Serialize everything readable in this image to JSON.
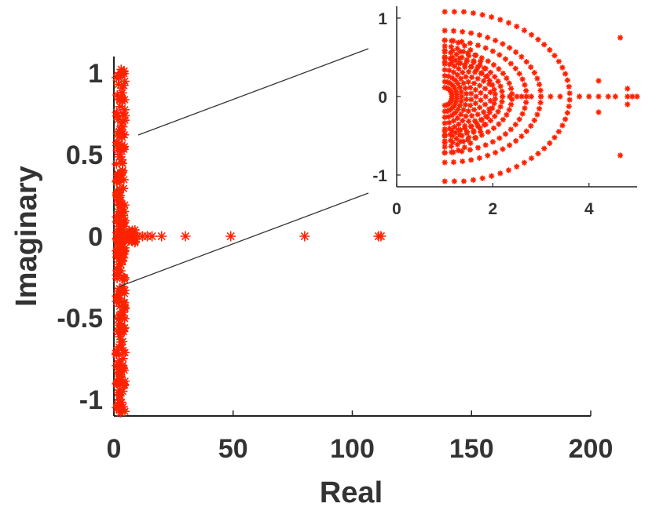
{
  "chart_data": [
    {
      "type": "scatter",
      "title": "",
      "xlabel": "Real",
      "ylabel": "Imaginary",
      "xlim": [
        0,
        200
      ],
      "ylim": [
        -1.1,
        1.1
      ],
      "xticks": [
        "0",
        "50",
        "100",
        "150",
        "200"
      ],
      "yticks": [
        "-1",
        "-0.5",
        "0",
        "0.5",
        "1"
      ],
      "grid": false,
      "marker": "asterisk",
      "color": "#ff2200",
      "series": [
        {
          "cluster": {
            "x_range": [
              1,
              4.7
            ],
            "y_range": [
              -1.08,
              1.08
            ],
            "description_points": "dense column of eigenvalues near Re in [1,5]"
          },
          "outliers": [
            [
              5,
              0
            ],
            [
              6,
              0
            ],
            [
              7,
              0
            ],
            [
              8,
              0
            ],
            [
              9,
              0
            ],
            [
              10,
              0
            ],
            [
              12,
              0
            ],
            [
              14,
              0
            ],
            [
              16,
              0
            ],
            [
              20,
              0
            ],
            [
              30,
              0
            ],
            [
              49,
              0
            ],
            [
              80,
              0
            ],
            [
              111,
              0
            ],
            [
              112,
              0
            ]
          ]
        }
      ]
    },
    {
      "type": "scatter",
      "inset": true,
      "title": "",
      "xlabel": "",
      "ylabel": "",
      "xlim": [
        0,
        5
      ],
      "ylim": [
        -1.15,
        1.15
      ],
      "xticks": [
        "0",
        "2",
        "4"
      ],
      "yticks": [
        "-1",
        "0",
        "1"
      ],
      "grid": false,
      "marker": "asterisk",
      "color": "#ff2200",
      "series": [
        {
          "arcs": [
            {
              "r": 0.15
            },
            {
              "r": 0.25
            },
            {
              "r": 0.35
            },
            {
              "r": 0.45
            },
            {
              "r": 0.55
            },
            {
              "r": 0.65
            },
            {
              "r": 0.75
            },
            {
              "r": 0.85
            },
            {
              "r": 0.95
            },
            {
              "r": 1.05
            },
            {
              "r": 1.2
            },
            {
              "r": 1.4
            },
            {
              "r": 1.7
            },
            {
              "r": 2.0
            },
            {
              "r": 2.6
            }
          ],
          "arc_center_x": 1.0,
          "axis_points": [
            2.2,
            2.35,
            2.5,
            2.6,
            2.7,
            2.8,
            3.0,
            3.2,
            3.4,
            3.8,
            4.0,
            4.2,
            4.4,
            4.55,
            4.8,
            4.9,
            5.0
          ],
          "extra_points": [
            [
              4.65,
              0.75
            ],
            [
              4.65,
              -0.75
            ],
            [
              4.2,
              0.2
            ],
            [
              4.2,
              -0.2
            ],
            [
              4.8,
              0.1
            ],
            [
              4.8,
              -0.1
            ]
          ]
        }
      ]
    }
  ]
}
